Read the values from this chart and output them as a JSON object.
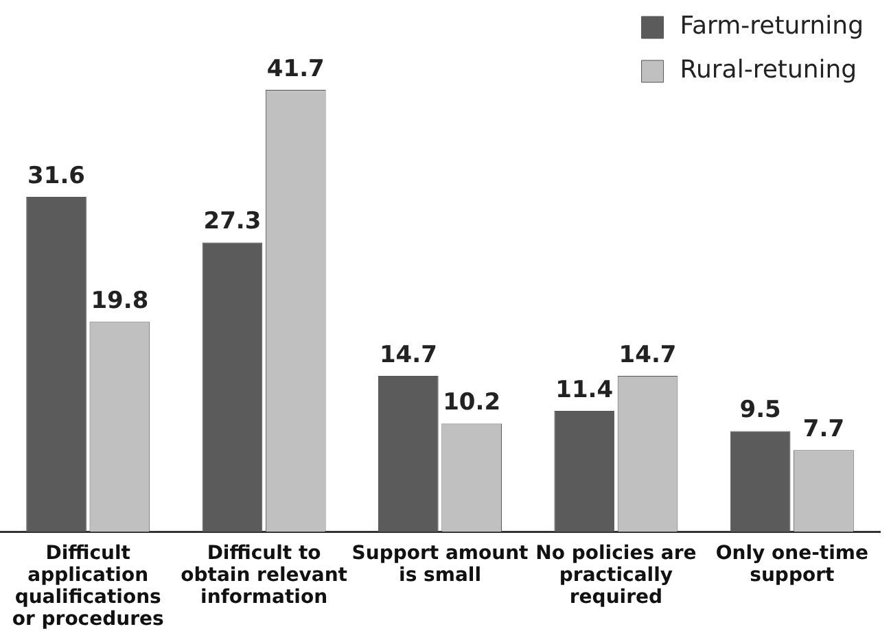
{
  "chart_data": {
    "type": "bar",
    "categories": [
      "Difficult application qualifications or procedures",
      "Difficult to obtain relevant information",
      "Support amount is small",
      "No policies are practically required",
      "Only one-time support"
    ],
    "series": [
      {
        "name": "Farm-returning",
        "color": "#5b5b5b",
        "values": [
          31.6,
          27.3,
          14.7,
          11.4,
          9.5
        ]
      },
      {
        "name": "Rural-retuning",
        "color": "#c0c0c0",
        "values": [
          19.8,
          41.7,
          10.2,
          14.7,
          7.7
        ]
      }
    ],
    "data_labels": true,
    "grid": false,
    "legend": "top right",
    "tick_labels": "x"
  }
}
